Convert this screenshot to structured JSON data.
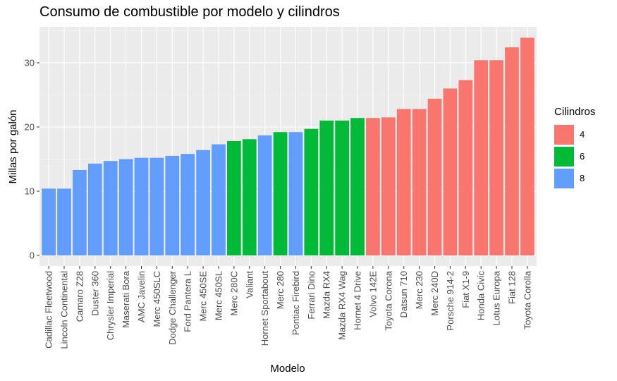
{
  "chart_data": {
    "type": "bar",
    "title": "Consumo de combustible por modelo y cilindros",
    "xlabel": "Modelo",
    "ylabel": "Millas por galón",
    "ylim": [
      0,
      35
    ],
    "yticks": [
      0,
      10,
      20,
      30
    ],
    "grid": true,
    "legend": {
      "title": "Cilindros",
      "position": "right",
      "entries": [
        {
          "label": "4",
          "color": "#F8766D"
        },
        {
          "label": "6",
          "color": "#00BA38"
        },
        {
          "label": "8",
          "color": "#619CFF"
        }
      ]
    },
    "categories": [
      "Cadillac Fleetwood",
      "Lincoln Continental",
      "Camaro Z28",
      "Duster 360",
      "Chrysler Imperial",
      "Maserati Bora",
      "AMC Javelin",
      "Merc 450SLC",
      "Dodge Challenger",
      "Ford Pantera L",
      "Merc 450SE",
      "Merc 450SL",
      "Merc 280C",
      "Valiant",
      "Hornet Sportabout",
      "Merc 280",
      "Pontiac Firebird",
      "Ferrari Dino",
      "Mazda RX4",
      "Mazda RX4 Wag",
      "Hornet 4 Drive",
      "Volvo 142E",
      "Toyota Corona",
      "Datsun 710",
      "Merc 230",
      "Merc 240D",
      "Porsche 914-2",
      "Fiat X1-9",
      "Honda Civic",
      "Lotus Europa",
      "Fiat 128",
      "Toyota Corolla"
    ],
    "values": [
      10.4,
      10.4,
      13.3,
      14.3,
      14.7,
      15.0,
      15.2,
      15.2,
      15.5,
      15.8,
      16.4,
      17.3,
      17.8,
      18.1,
      18.7,
      19.2,
      19.2,
      19.7,
      21.0,
      21.0,
      21.4,
      21.4,
      21.5,
      22.8,
      22.8,
      24.4,
      26.0,
      27.3,
      30.4,
      30.4,
      32.4,
      33.9
    ],
    "cylinders": [
      "8",
      "8",
      "8",
      "8",
      "8",
      "8",
      "8",
      "8",
      "8",
      "8",
      "8",
      "8",
      "6",
      "6",
      "8",
      "6",
      "8",
      "6",
      "6",
      "6",
      "6",
      "4",
      "4",
      "4",
      "4",
      "4",
      "4",
      "4",
      "4",
      "4",
      "4",
      "4"
    ]
  }
}
